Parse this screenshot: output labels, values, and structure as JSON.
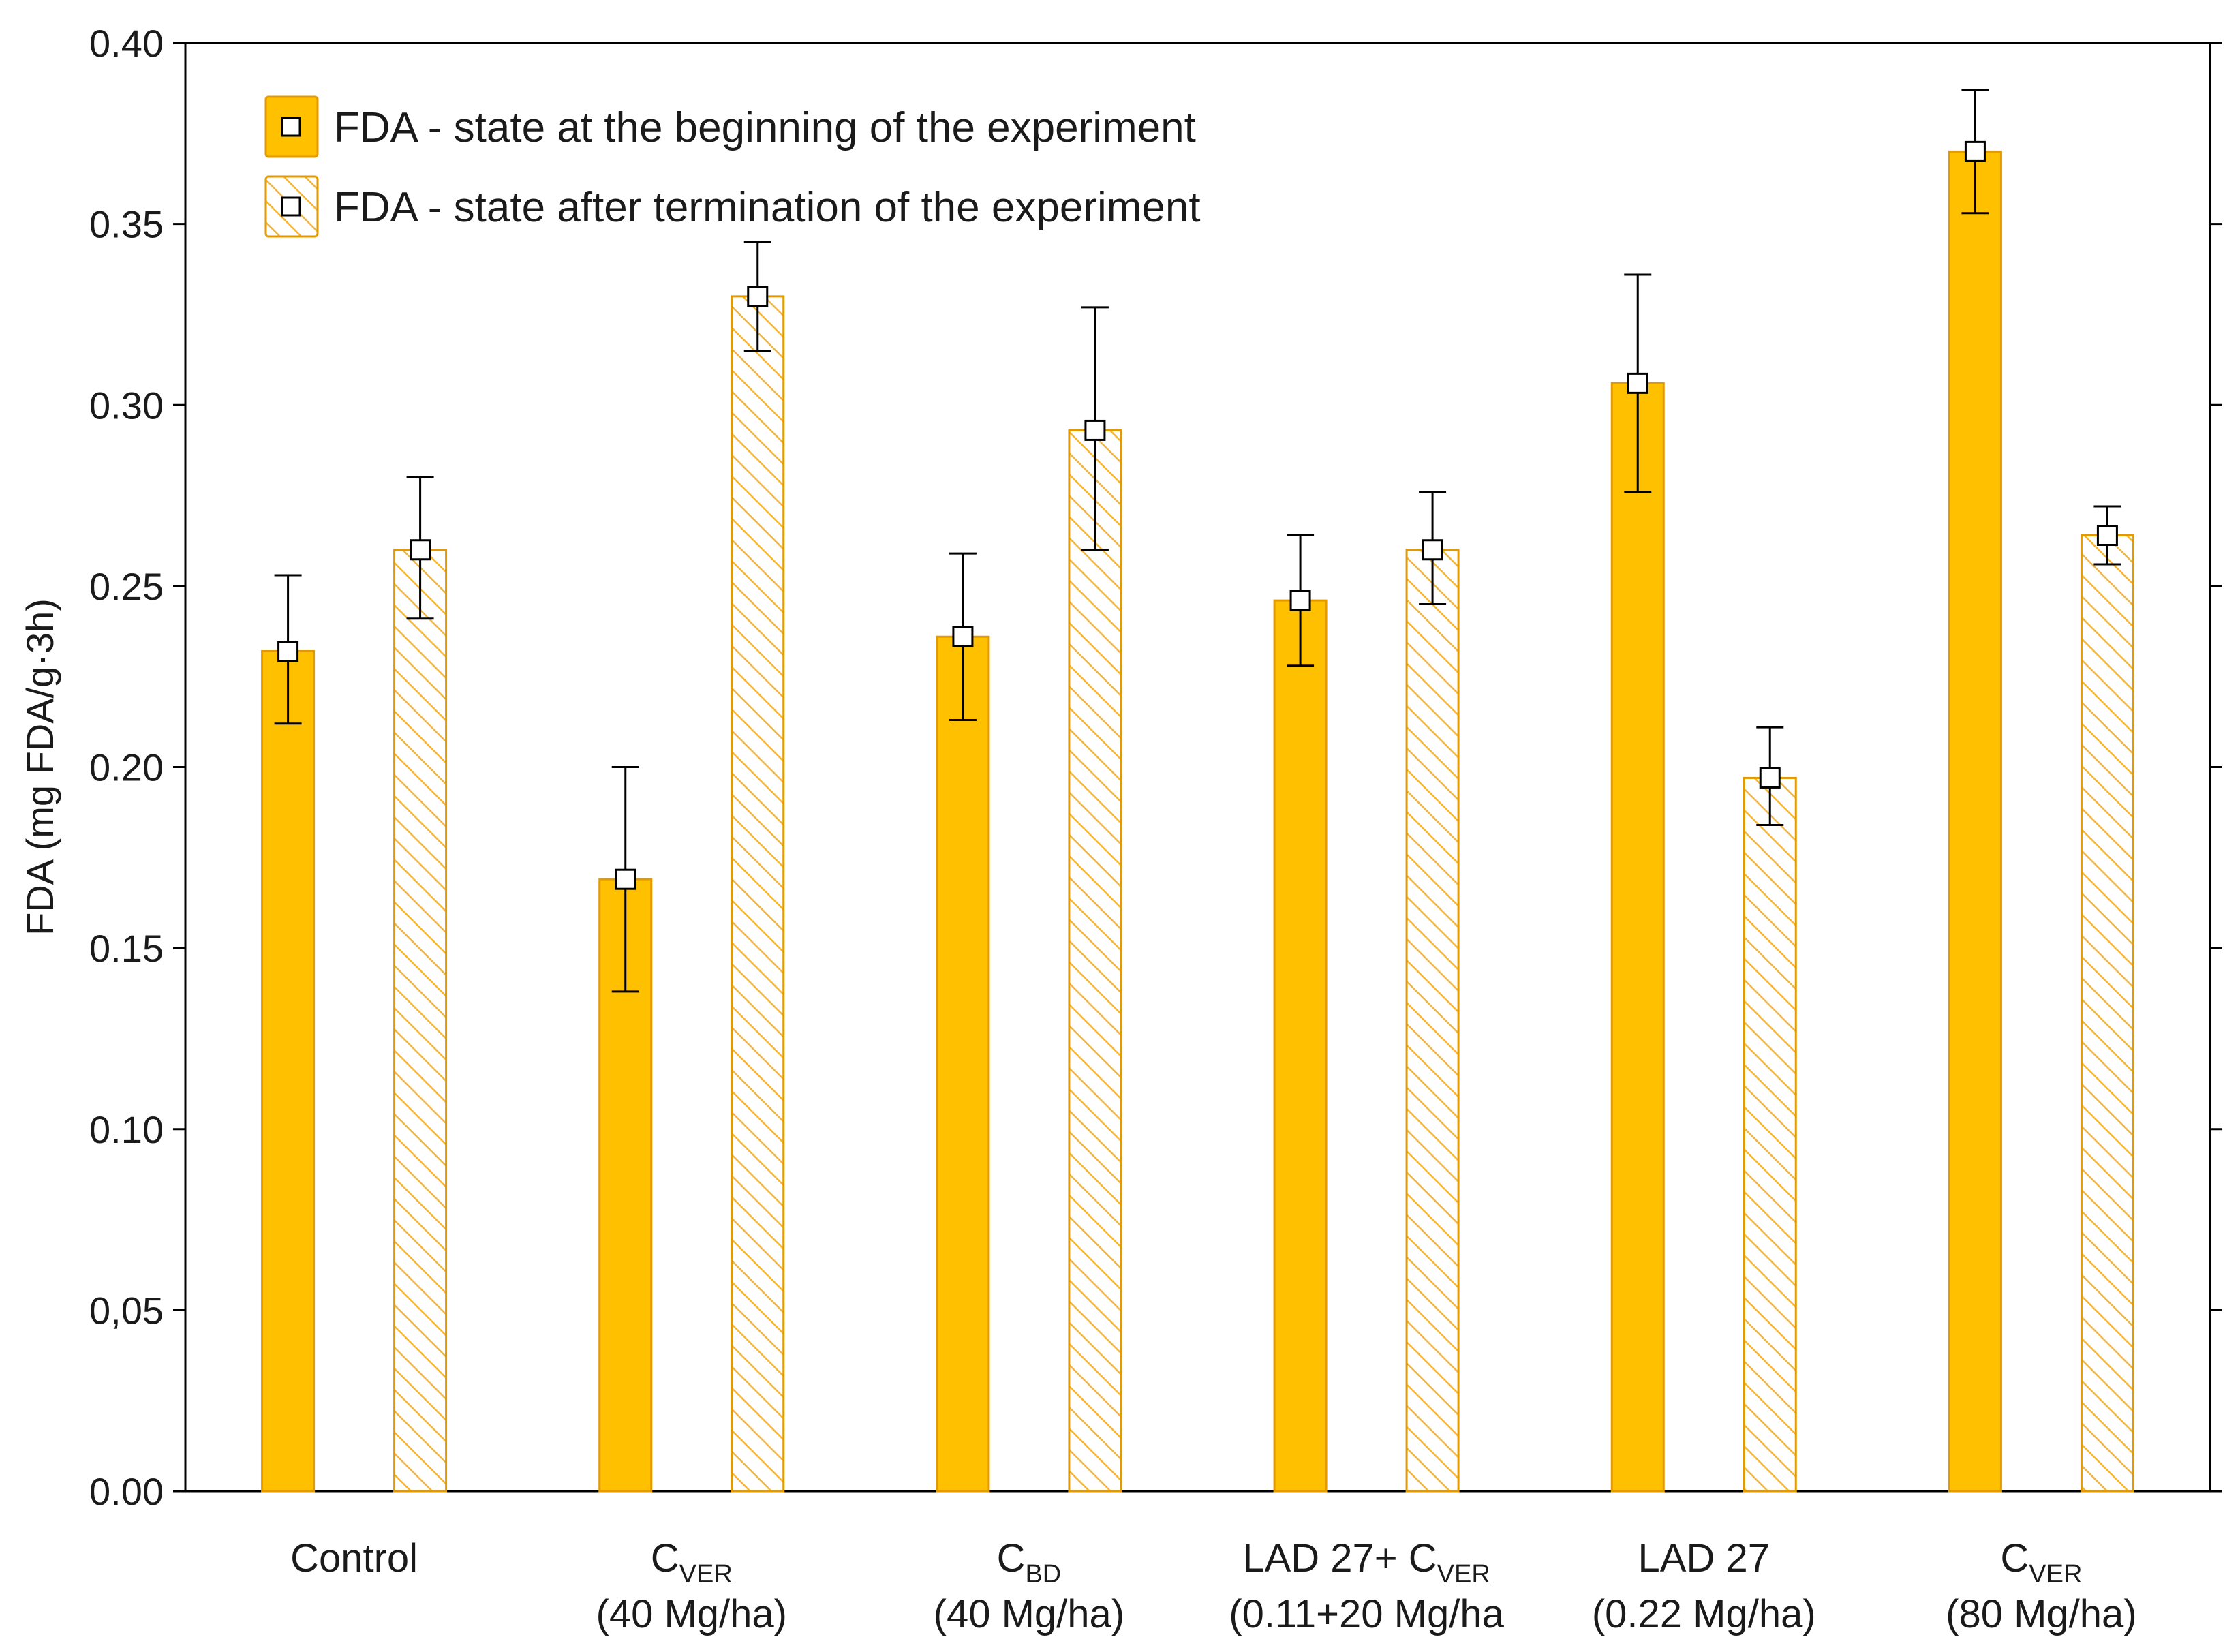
{
  "chart_data": {
    "type": "bar",
    "title": "",
    "xlabel": "",
    "ylabel": "FDA (mg FDA/g·3h)",
    "ylim": [
      0,
      0.4
    ],
    "yticks": [
      {
        "value": 0.0,
        "label": "0.00"
      },
      {
        "value": 0.05,
        "label": "0,05"
      },
      {
        "value": 0.1,
        "label": "0.10"
      },
      {
        "value": 0.15,
        "label": "0.15"
      },
      {
        "value": 0.2,
        "label": "0.20"
      },
      {
        "value": 0.25,
        "label": "0.25"
      },
      {
        "value": 0.3,
        "label": "0.30"
      },
      {
        "value": 0.35,
        "label": "0.35"
      },
      {
        "value": 0.4,
        "label": "0.40"
      }
    ],
    "categories": [
      {
        "line1_main": "Control",
        "line1_sub": "",
        "line2": ""
      },
      {
        "line1_main": "C",
        "line1_sub": "VER",
        "line2": "(40 Mg/ha)"
      },
      {
        "line1_main": "C",
        "line1_sub": "BD",
        "line2": "(40 Mg/ha)"
      },
      {
        "line1_main": "LAD 27+ C",
        "line1_sub": "VER",
        "line2": "(0.11+20 Mg/ha"
      },
      {
        "line1_main": "LAD 27",
        "line1_sub": "",
        "line2": "(0.22 Mg/ha)"
      },
      {
        "line1_main": "C",
        "line1_sub": "VER",
        "line2": "(80 Mg/ha)"
      }
    ],
    "series": [
      {
        "name": "FDA - state at the beginning of the experiment",
        "style": "solid",
        "values": [
          0.232,
          0.169,
          0.236,
          0.246,
          0.306,
          0.37
        ],
        "err_low": [
          0.212,
          0.138,
          0.213,
          0.228,
          0.276,
          0.353
        ],
        "err_high": [
          0.253,
          0.2,
          0.259,
          0.264,
          0.336,
          0.387
        ]
      },
      {
        "name": "FDA - state after termination of the experiment",
        "style": "hatched",
        "values": [
          0.26,
          0.33,
          0.293,
          0.26,
          0.197,
          0.264
        ],
        "err_low": [
          0.241,
          0.315,
          0.26,
          0.245,
          0.184,
          0.256
        ],
        "err_high": [
          0.28,
          0.345,
          0.327,
          0.276,
          0.211,
          0.272
        ]
      }
    ],
    "legend_position": "top-left",
    "grid": false
  },
  "colors": {
    "bar_fill": "#FFC000",
    "bar_stroke": "#E39A00",
    "hatch": "#F3B53A",
    "axis": "#000000"
  }
}
